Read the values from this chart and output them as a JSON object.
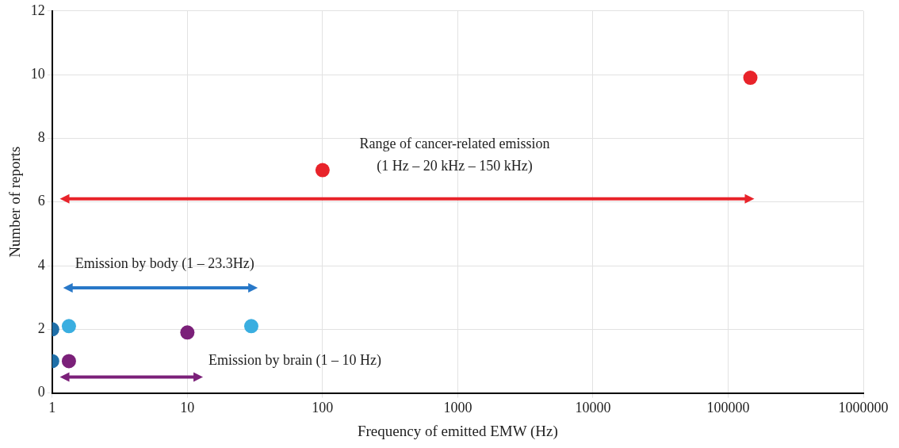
{
  "chart_data": {
    "type": "scatter",
    "xlabel": "Frequency of emitted EMW (Hz)",
    "ylabel": "Number of reports",
    "log": "x",
    "xlim": [
      1,
      1000000
    ],
    "xticks": [
      1,
      10,
      100,
      1000,
      10000,
      100000,
      1000000
    ],
    "ylim": [
      0,
      12
    ],
    "yticks": [
      0,
      2,
      4,
      6,
      8,
      10,
      12
    ],
    "grid": true,
    "legend": false,
    "marker": "circle",
    "series": [
      {
        "color": "#e8232a",
        "x": [
          100,
          146000
        ],
        "values": [
          7,
          9.9
        ]
      },
      {
        "color": "#3aaee0",
        "x": [
          1.33,
          29.7
        ],
        "values": [
          2.1,
          2.1
        ]
      },
      {
        "color": "#7b2079",
        "x": [
          1.33,
          10
        ],
        "values": [
          1,
          1.9
        ]
      },
      {
        "color": "#1f6fa8",
        "x": [
          1,
          1
        ],
        "values": [
          2,
          1
        ]
      },
      {
        "type": "line",
        "marker": "triangle",
        "color": "#e8232a",
        "x": [
          1.22,
          146000
        ],
        "values": [
          6.1,
          6.1
        ]
      },
      {
        "type": "line",
        "marker": "triangle",
        "color": "#2878c8",
        "x": [
          1.29,
          31
        ],
        "values": [
          3.3,
          3.3
        ]
      },
      {
        "type": "line",
        "marker": "triangle",
        "color": "#7b2079",
        "x": [
          1.22,
          12.2
        ],
        "values": [
          0.5,
          0.5
        ]
      }
    ],
    "annotations": [
      "Range of cancer-related emission",
      "(1 Hz – 20 kHz – 150 kHz)",
      "Emission by body (1 – 23.3Hz)",
      "Emission by brain (1 – 10 Hz)"
    ]
  }
}
